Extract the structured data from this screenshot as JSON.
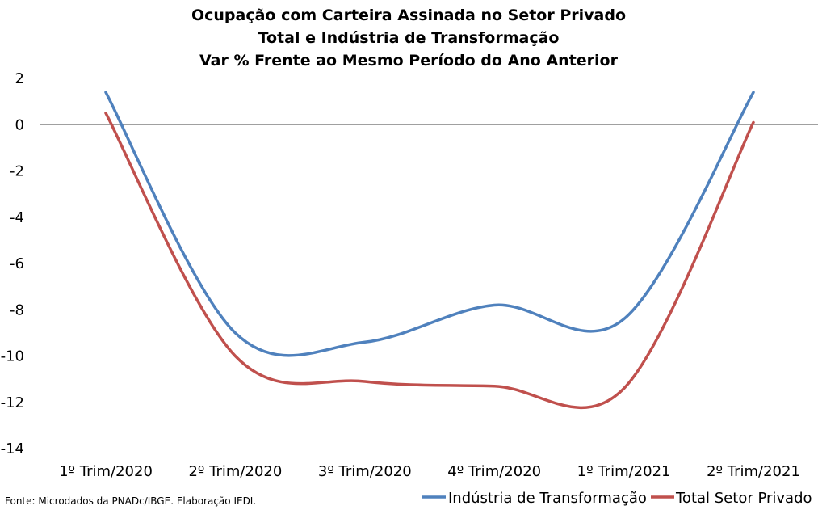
{
  "chart_data": {
    "type": "line",
    "title": [
      "Ocupação com Carteira Assinada no Setor Privado",
      "Total e Indústria de Transformação",
      "Var % Frente ao Mesmo Período do Ano Anterior"
    ],
    "categories": [
      "1º Trim/2020",
      "2º Trim/2020",
      "3º Trim/2020",
      "4º Trim/2020",
      "1º Trim/2021",
      "2º Trim/2021"
    ],
    "yticks": [
      2,
      0,
      -2,
      -4,
      -6,
      -8,
      -10,
      -12,
      -14
    ],
    "ylim": [
      -14,
      2
    ],
    "series": [
      {
        "name": "Indústria de Transformação",
        "color": "#4F81BD",
        "values": [
          1.4,
          -9.0,
          -9.4,
          -7.8,
          -8.4,
          1.4
        ]
      },
      {
        "name": "Total Setor Privado",
        "color": "#C0504D",
        "values": [
          0.5,
          -10.0,
          -11.1,
          -11.3,
          -11.4,
          0.1
        ]
      }
    ],
    "legend_position": "bottom-right",
    "source": "Fonte: Microdados da PNADc/IBGE. Elaboração IEDI."
  }
}
